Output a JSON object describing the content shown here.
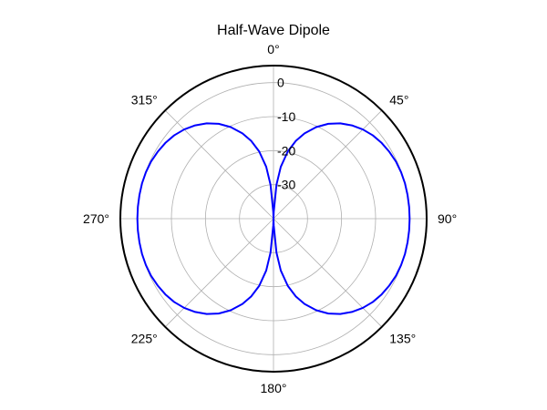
{
  "chart_data": {
    "type": "polar-line",
    "title": "Half-Wave Dipole",
    "angle_unit": "deg",
    "angle_zero": "top",
    "angle_direction": "clockwise",
    "theta_ticks": [
      "0°",
      "45°",
      "90°",
      "135°",
      "180°",
      "225°",
      "270°",
      "315°"
    ],
    "theta_tick_values": [
      0,
      45,
      90,
      135,
      180,
      225,
      270,
      315
    ],
    "r_ticks": [
      "0",
      "-10",
      "-20",
      "-30"
    ],
    "r_tick_values": [
      0,
      -10,
      -20,
      -30
    ],
    "rlim": [
      -40,
      5
    ],
    "grid": true,
    "series": [
      {
        "color": "#0000ff",
        "theta": [
          0,
          2,
          5,
          8,
          12,
          16,
          20,
          25,
          30,
          35,
          40,
          45,
          50,
          55,
          60,
          65,
          70,
          75,
          80,
          85,
          90,
          95,
          100,
          105,
          110,
          115,
          120,
          125,
          130,
          135,
          140,
          145,
          150,
          155,
          160,
          164,
          168,
          172,
          175,
          178,
          180,
          182,
          185,
          188,
          192,
          196,
          200,
          205,
          210,
          215,
          220,
          225,
          230,
          235,
          240,
          245,
          250,
          255,
          260,
          265,
          270,
          275,
          280,
          285,
          290,
          295,
          300,
          305,
          310,
          315,
          320,
          325,
          330,
          335,
          340,
          344,
          348,
          352,
          355,
          358,
          360
        ],
        "r": [
          -40,
          -38,
          -30,
          -24.6,
          -19.8,
          -16.2,
          -13.3,
          -10.3,
          -7.8,
          -5.8,
          -4.2,
          -2.9,
          -1.9,
          -1.2,
          -0.7,
          -0.3,
          -0.1,
          0,
          0,
          0,
          0,
          0,
          0,
          0,
          -0.1,
          -0.3,
          -0.7,
          -1.2,
          -1.9,
          -2.9,
          -4.2,
          -5.8,
          -7.8,
          -10.3,
          -13.3,
          -16.2,
          -19.8,
          -24.6,
          -30,
          -38,
          -40,
          -38,
          -30,
          -24.6,
          -19.8,
          -16.2,
          -13.3,
          -10.3,
          -7.8,
          -5.8,
          -4.2,
          -2.9,
          -1.9,
          -1.2,
          -0.7,
          -0.3,
          -0.1,
          0,
          0,
          0,
          0,
          0,
          0,
          0,
          -0.1,
          -0.3,
          -0.7,
          -1.2,
          -1.9,
          -2.9,
          -4.2,
          -5.8,
          -7.8,
          -10.3,
          -13.3,
          -16.2,
          -19.8,
          -24.6,
          -30,
          -38,
          -40
        ]
      }
    ]
  }
}
